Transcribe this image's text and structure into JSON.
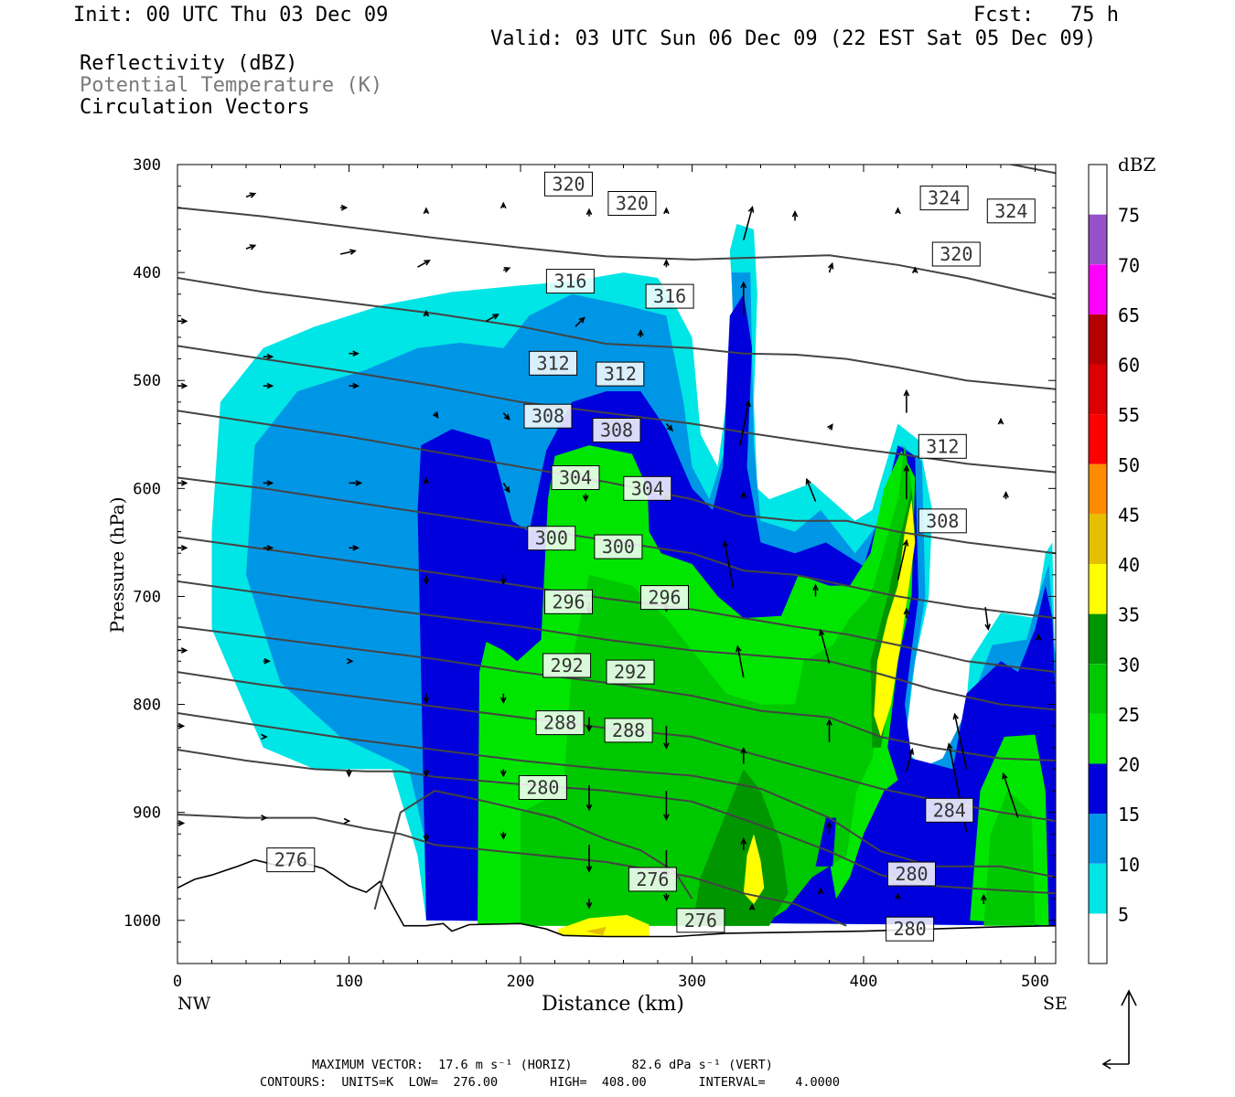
{
  "header": {
    "init": "Init: 00 UTC Thu 03 Dec 09",
    "fcst": "Fcst:   75 h",
    "valid": "Valid: 03 UTC Sun 06 Dec 09 (22 EST Sat 05 Dec 09)",
    "fields": [
      "Reflectivity (dBZ)",
      "Potential Temperature (K)",
      "Circulation Vectors"
    ]
  },
  "footer": {
    "max_vector": "MAXIMUM VECTOR:  17.6 m s⁻¹ (HORIZ)        82.6 dPa s⁻¹ (VERT)",
    "contours": "CONTOURS:  UNITS=K  LOW=  276.00       HIGH=  408.00       INTERVAL=    4.0000"
  },
  "chart_data": {
    "type": "heatmap",
    "title": "Reflectivity (dBZ) / Potential Temperature (K) / Circulation Vectors",
    "xlabel": "Distance (km)",
    "ylabel": "Pressure (hPa)",
    "xlim": [
      0,
      512
    ],
    "ylim": [
      1040,
      300
    ],
    "x_ticks": [
      0,
      100,
      200,
      300,
      400,
      500
    ],
    "y_ticks": [
      300,
      400,
      500,
      600,
      700,
      800,
      900,
      1000
    ],
    "x_end_labels": [
      "NW",
      "SE"
    ],
    "colorbar": {
      "label": "dBZ",
      "levels": [
        5,
        10,
        15,
        20,
        25,
        30,
        35,
        40,
        45,
        50,
        55,
        60,
        65,
        70,
        75
      ],
      "colors": [
        "#ffffff",
        "#00e5e5",
        "#0096e6",
        "#0000dc",
        "#00e600",
        "#00c800",
        "#009600",
        "#ffff00",
        "#e6c000",
        "#ff8c00",
        "#ff0000",
        "#dc0000",
        "#b40000",
        "#ff00ff",
        "#9650c8",
        "#ffffff"
      ]
    },
    "theta_contours": {
      "units": "K",
      "low": 276,
      "high": 408,
      "interval": 4,
      "labels": [
        {
          "value": 320,
          "x": 228,
          "p": 318
        },
        {
          "value": 320,
          "x": 265,
          "p": 336
        },
        {
          "value": 324,
          "x": 447,
          "p": 331
        },
        {
          "value": 324,
          "x": 486,
          "p": 343
        },
        {
          "value": 320,
          "x": 454,
          "p": 383
        },
        {
          "value": 316,
          "x": 229,
          "p": 408
        },
        {
          "value": 316,
          "x": 287,
          "p": 422
        },
        {
          "value": 312,
          "x": 219,
          "p": 484
        },
        {
          "value": 312,
          "x": 258,
          "p": 494
        },
        {
          "value": 312,
          "x": 446,
          "p": 561
        },
        {
          "value": 308,
          "x": 216,
          "p": 533
        },
        {
          "value": 308,
          "x": 256,
          "p": 546
        },
        {
          "value": 308,
          "x": 446,
          "p": 630
        },
        {
          "value": 304,
          "x": 232,
          "p": 590
        },
        {
          "value": 304,
          "x": 274,
          "p": 600
        },
        {
          "value": 300,
          "x": 218,
          "p": 646
        },
        {
          "value": 300,
          "x": 257,
          "p": 654
        },
        {
          "value": 296,
          "x": 228,
          "p": 705
        },
        {
          "value": 296,
          "x": 284,
          "p": 701
        },
        {
          "value": 292,
          "x": 227,
          "p": 764
        },
        {
          "value": 292,
          "x": 264,
          "p": 770
        },
        {
          "value": 288,
          "x": 223,
          "p": 817
        },
        {
          "value": 288,
          "x": 263,
          "p": 824
        },
        {
          "value": 284,
          "x": 450,
          "p": 898
        },
        {
          "value": 280,
          "x": 213,
          "p": 877
        },
        {
          "value": 280,
          "x": 428,
          "p": 957
        },
        {
          "value": 280,
          "x": 427,
          "p": 1008
        },
        {
          "value": 276,
          "x": 66,
          "p": 944
        },
        {
          "value": 276,
          "x": 277,
          "p": 962
        },
        {
          "value": 276,
          "x": 305,
          "p": 1000
        }
      ]
    },
    "vector_scale": {
      "horiz_max_m_s": 17.6,
      "vert_max_dPa_s": 82.6
    }
  }
}
